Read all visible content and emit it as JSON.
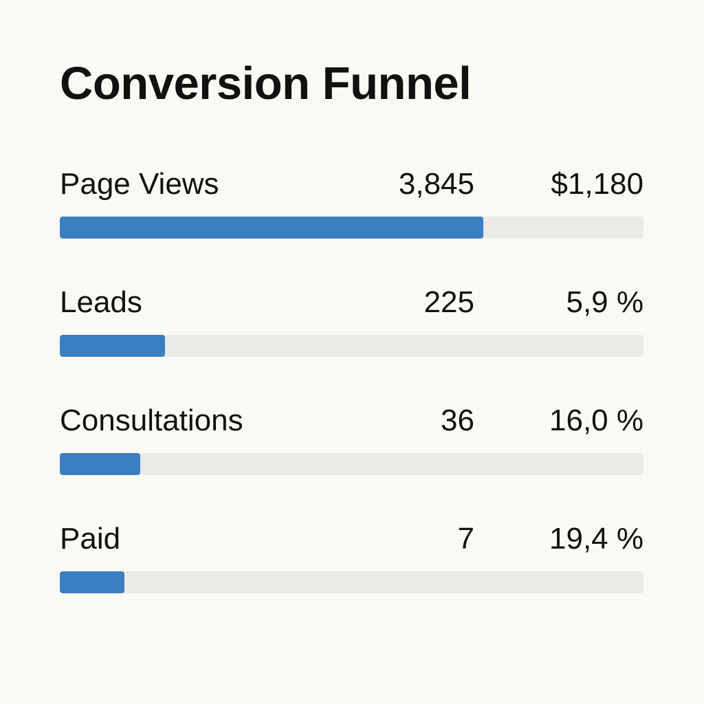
{
  "title": "Conversion Funnel",
  "colors": {
    "background": "#fbf9f4",
    "bar_fill": "#3b7fc1",
    "bar_track": "#eceae5",
    "text": "#111111"
  },
  "chart_data": {
    "type": "bar",
    "orientation": "horizontal",
    "title": "Conversion Funnel",
    "categories": [
      "Page Views",
      "Leads",
      "Consultations",
      "Paid"
    ],
    "bar_fraction": [
      0.725,
      0.18,
      0.138,
      0.111
    ],
    "rows": [
      {
        "label": "Page Views",
        "count": "3,845",
        "metric": "$1,180"
      },
      {
        "label": "Leads",
        "count": "225",
        "metric": "5,9 %"
      },
      {
        "label": "Consultations",
        "count": "36",
        "metric": "16,0 %"
      },
      {
        "label": "Paid",
        "count": "7",
        "metric": "19,4 %"
      }
    ],
    "grid": false,
    "legend": "none"
  }
}
